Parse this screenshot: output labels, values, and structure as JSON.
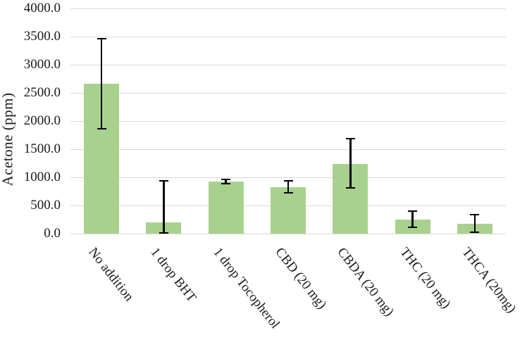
{
  "figure": {
    "background": "#ffffff"
  },
  "chart_data": {
    "type": "bar",
    "title": "",
    "xlabel": "",
    "ylabel": "Acetone (ppm)",
    "categories": [
      "No addition",
      "1 drop BHT",
      "1 drop Tocopherol",
      "CBD (20 mg)",
      "CBDA (20 mg)",
      "THC (20 mg)",
      "THCA (20mg)"
    ],
    "values": [
      2660,
      200,
      920,
      825,
      1240,
      250,
      175
    ],
    "error_bars": {
      "low": [
        1860,
        10,
        890,
        725,
        815,
        110,
        25
      ],
      "high": [
        3460,
        940,
        960,
        940,
        1690,
        400,
        335
      ]
    },
    "ylim": [
      0,
      4000
    ],
    "ytick_step": 500,
    "ytick_labels": [
      "0.0",
      "500.0",
      "1000.0",
      "1500.0",
      "2000.0",
      "2500.0",
      "3000.0",
      "3500.0",
      "4000.0"
    ],
    "grid": true,
    "legend_position": "none",
    "bar_color": "#a9d18e",
    "error_bar_color": "#000000",
    "gridline_color": "#d9d9d9",
    "axis_line_color": "#d9d9d9",
    "text_color": "#1a1a1a"
  }
}
